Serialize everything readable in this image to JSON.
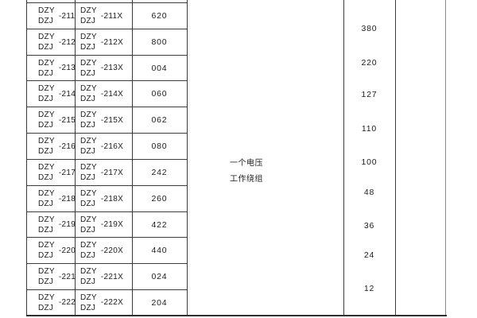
{
  "table": {
    "rows": [
      {
        "m1": {
          "top": "DZY",
          "bot": "DZJ",
          "code": "-211"
        },
        "m2": {
          "top": "DZY",
          "bot": "DZJ",
          "code": "-211X"
        },
        "value": "620"
      },
      {
        "m1": {
          "top": "DZY",
          "bot": "DZJ",
          "code": "-212"
        },
        "m2": {
          "top": "DZY",
          "bot": "DZJ",
          "code": "-212X"
        },
        "value": "800"
      },
      {
        "m1": {
          "top": "DZY",
          "bot": "DZJ",
          "code": "-213"
        },
        "m2": {
          "top": "DZY",
          "bot": "DZJ",
          "code": "-213X"
        },
        "value": "004"
      },
      {
        "m1": {
          "top": "DZY",
          "bot": "DZJ",
          "code": "-214"
        },
        "m2": {
          "top": "DZY",
          "bot": "DZJ",
          "code": "-214X"
        },
        "value": "060"
      },
      {
        "m1": {
          "top": "DZY",
          "bot": "DZJ",
          "code": "-215"
        },
        "m2": {
          "top": "DZY",
          "bot": "DZJ",
          "code": "-215X"
        },
        "value": "062"
      },
      {
        "m1": {
          "top": "DZY",
          "bot": "DZJ",
          "code": "-216"
        },
        "m2": {
          "top": "DZY",
          "bot": "DZJ",
          "code": "-216X"
        },
        "value": "080"
      },
      {
        "m1": {
          "top": "DZY",
          "bot": "DZJ",
          "code": "-217"
        },
        "m2": {
          "top": "DZY",
          "bot": "DZJ",
          "code": "-217X"
        },
        "value": "242"
      },
      {
        "m1": {
          "top": "DZY",
          "bot": "DZJ",
          "code": "-218"
        },
        "m2": {
          "top": "DZY",
          "bot": "DZJ",
          "code": "-218X"
        },
        "value": "260"
      },
      {
        "m1": {
          "top": "DZY",
          "bot": "DZJ",
          "code": "-219"
        },
        "m2": {
          "top": "DZY",
          "bot": "DZJ",
          "code": "-219X"
        },
        "value": "422"
      },
      {
        "m1": {
          "top": "DZY",
          "bot": "DZJ",
          "code": "-220"
        },
        "m2": {
          "top": "DZY",
          "bot": "DZJ",
          "code": "-220X"
        },
        "value": "440"
      },
      {
        "m1": {
          "top": "DZY",
          "bot": "DZJ",
          "code": "-221"
        },
        "m2": {
          "top": "DZY",
          "bot": "DZJ",
          "code": "-221X"
        },
        "value": "024"
      },
      {
        "m1": {
          "top": "DZY",
          "bot": "DZJ",
          "code": "-222"
        },
        "m2": {
          "top": "DZY",
          "bot": "DZJ",
          "code": "-222X"
        },
        "value": "204"
      }
    ],
    "winding_cell": {
      "line1": "一个电压",
      "line2": "工作绕组"
    },
    "voltages": [
      "380",
      "220",
      "127",
      "110",
      "100",
      "48",
      "36",
      "24",
      "12"
    ],
    "colors": {
      "border": "#3d3d3d",
      "border_light": "#8a8a8a",
      "text": "#1c1c1c",
      "background": "#ffffff"
    }
  }
}
